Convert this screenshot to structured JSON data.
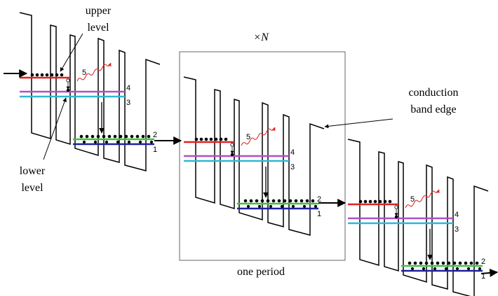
{
  "annotations": [
    {
      "lines": [
        "upper",
        "level"
      ]
    },
    {
      "lines": [
        "lower",
        "level"
      ]
    },
    {
      "lines": [
        "conduction",
        "band edge"
      ]
    }
  ],
  "box": {
    "label": "×N",
    "caption": "one period"
  },
  "periods": [
    {
      "levels": [
        "5",
        "4",
        "3",
        "2",
        "1"
      ]
    },
    {
      "levels": [
        "5",
        "4",
        "3",
        "2",
        "1"
      ]
    },
    {
      "levels": [
        "5",
        "4",
        "3",
        "2",
        "1"
      ]
    }
  ]
}
